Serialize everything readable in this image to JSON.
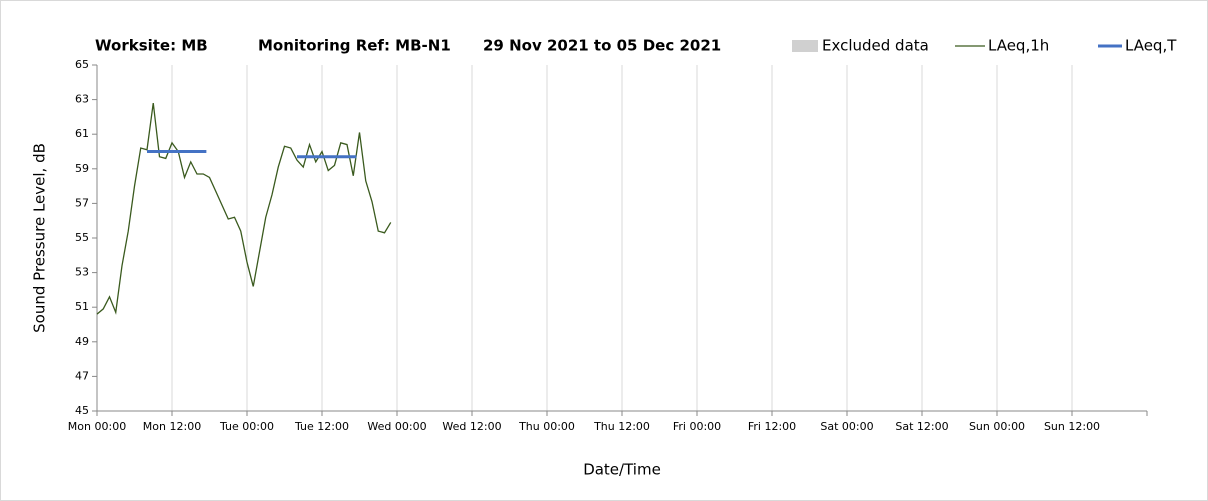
{
  "chart_data": {
    "type": "line",
    "title_parts": [
      "Worksite: MB",
      "Monitoring Ref: MB-N1",
      "29 Nov 2021 to 05 Dec 2021"
    ],
    "xlabel": "Date/Time",
    "ylabel": "Sound Pressure Level, dB",
    "xlim": [
      0,
      168
    ],
    "ylim": [
      45,
      65
    ],
    "yticks": [
      45,
      47,
      49,
      51,
      53,
      55,
      57,
      59,
      61,
      63,
      65
    ],
    "xticks": [
      {
        "value": 0,
        "label": "Mon 00:00"
      },
      {
        "value": 12,
        "label": "Mon 12:00"
      },
      {
        "value": 24,
        "label": "Tue 00:00"
      },
      {
        "value": 36,
        "label": "Tue 12:00"
      },
      {
        "value": 48,
        "label": "Wed 00:00"
      },
      {
        "value": 60,
        "label": "Wed 12:00"
      },
      {
        "value": 72,
        "label": "Thu 00:00"
      },
      {
        "value": 84,
        "label": "Thu 12:00"
      },
      {
        "value": 96,
        "label": "Fri 00:00"
      },
      {
        "value": 108,
        "label": "Fri 12:00"
      },
      {
        "value": 120,
        "label": "Sat 00:00"
      },
      {
        "value": 132,
        "label": "Sat 12:00"
      },
      {
        "value": 144,
        "label": "Sun 00:00"
      },
      {
        "value": 156,
        "label": "Sun 12:00"
      }
    ],
    "grid": "x",
    "series": [
      {
        "name": "Excluded data",
        "kind": "area",
        "color": "#d0d0d0",
        "x": [],
        "values": []
      },
      {
        "name": "LAeq,1h",
        "kind": "line",
        "color": "#3a5a1e",
        "x": [
          0,
          1,
          2,
          3,
          4,
          5,
          6,
          7,
          8,
          9,
          10,
          11,
          12,
          13,
          14,
          15,
          16,
          17,
          18,
          19,
          20,
          21,
          22,
          23,
          24,
          25,
          26,
          27,
          28,
          29,
          30,
          31,
          32,
          33,
          34,
          35,
          36,
          37,
          38,
          39,
          40,
          41,
          42,
          43,
          44,
          45,
          46,
          47
        ],
        "values": [
          50.6,
          50.9,
          51.6,
          50.7,
          53.4,
          55.4,
          58.0,
          60.2,
          60.1,
          62.8,
          59.7,
          59.6,
          60.5,
          60.0,
          58.5,
          59.4,
          58.7,
          58.7,
          58.5,
          57.7,
          56.9,
          56.1,
          56.2,
          55.4,
          53.6,
          52.2,
          54.2,
          56.2,
          57.5,
          59.1,
          60.3,
          60.2,
          59.5,
          59.1,
          60.4,
          59.4,
          60.0,
          58.9,
          59.2,
          60.5,
          60.4,
          58.6,
          61.1,
          58.3,
          57.1,
          55.4,
          55.3,
          55.9
        ]
      },
      {
        "name": "LAeq,T",
        "kind": "level",
        "color": "#4472c4",
        "x": [
          8,
          17.5,
          null,
          32,
          41.5
        ],
        "values": [
          60.0,
          60.0,
          null,
          59.7,
          59.7
        ]
      }
    ]
  }
}
